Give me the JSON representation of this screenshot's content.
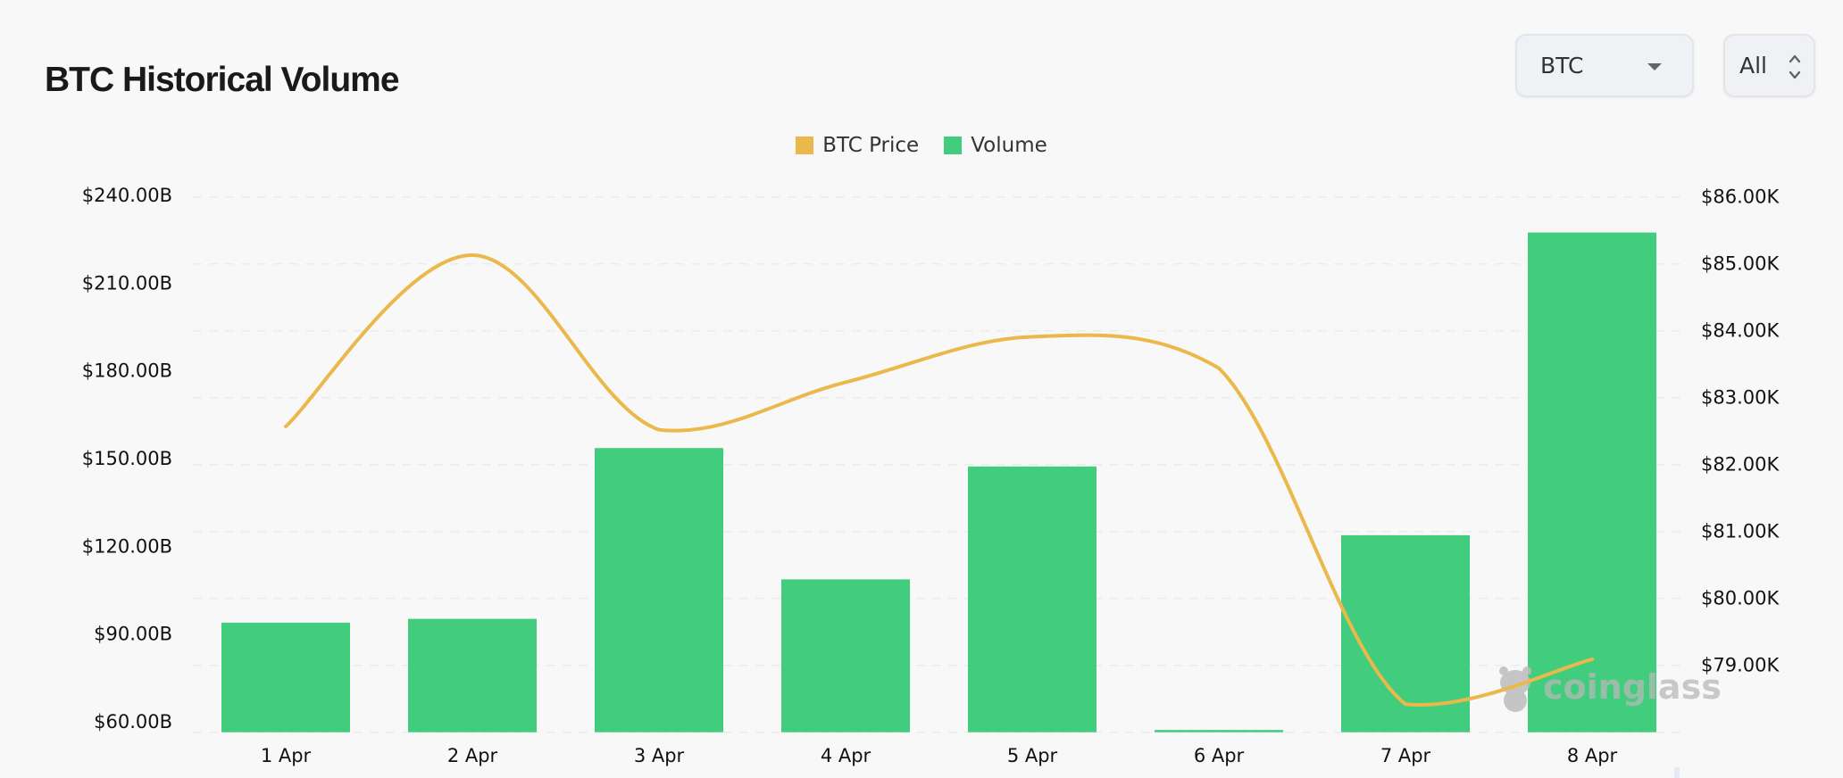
{
  "header": {
    "title": "BTC Historical Volume",
    "coin_select": {
      "value": "BTC",
      "icon": "caret-down-icon"
    },
    "range_select": {
      "value": "All",
      "icon": "chevron-up-down-icon"
    }
  },
  "legend": [
    {
      "label": "BTC Price",
      "color": "#ebb84c"
    },
    {
      "label": "Volume",
      "color": "#42cd7e"
    }
  ],
  "watermark": "coinglass",
  "chart_data": {
    "type": "bar",
    "title": "BTC Historical Volume",
    "categories": [
      "1 Apr",
      "2 Apr",
      "3 Apr",
      "4 Apr",
      "5 Apr",
      "6 Apr",
      "7 Apr",
      "8 Apr"
    ],
    "series": [
      {
        "name": "Volume",
        "type": "bar",
        "axis": "left",
        "color": "#42cd7e",
        "unit": "B USD",
        "values": [
          93.9,
          95.2,
          153.6,
          108.7,
          147.3,
          57.2,
          123.8,
          227.3
        ]
      },
      {
        "name": "BTC Price",
        "type": "line",
        "smooth": true,
        "axis": "right",
        "color": "#ebb84c",
        "unit": "K USD",
        "values": [
          82.57,
          85.13,
          82.52,
          83.23,
          83.91,
          83.44,
          78.42,
          79.09
        ]
      }
    ],
    "left_axis": {
      "ticks": [
        "$240.00B",
        "$210.00B",
        "$180.00B",
        "$150.00B",
        "$120.00B",
        "$90.00B",
        "$60.00B"
      ],
      "tick_values": [
        240,
        210,
        180,
        150,
        120,
        90,
        60
      ],
      "range": [
        56.6,
        240
      ]
    },
    "right_axis": {
      "ticks": [
        "$86.00K",
        "$85.00K",
        "$84.00K",
        "$83.00K",
        "$82.00K",
        "$81.00K",
        "$80.00K",
        "$79.00K"
      ],
      "tick_values": [
        86,
        85,
        84,
        83,
        82,
        81,
        80,
        79
      ],
      "range": [
        78,
        86
      ]
    },
    "xlabel": "",
    "ylabel_left": "Volume",
    "ylabel_right": "BTC Price",
    "grid": true,
    "legend_position": "top-center"
  }
}
